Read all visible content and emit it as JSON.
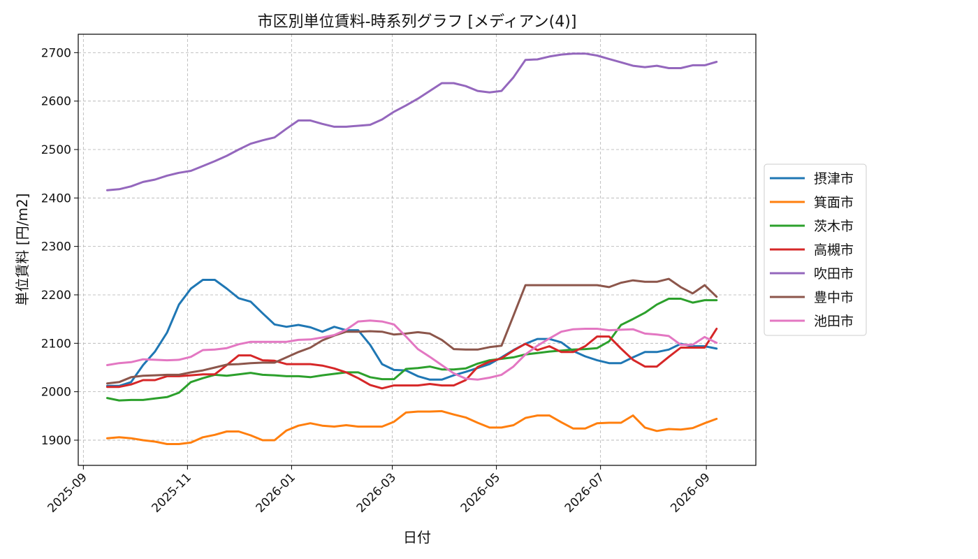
{
  "chart_data": {
    "type": "line",
    "title": "市区別単位賃料-時系列グラフ [メディアン(4)]",
    "xlabel": "日付",
    "ylabel": "単位賃料 [円/m2]",
    "xlim": [
      "2025-08-29",
      "2026-09-30"
    ],
    "ylim": [
      1848,
      2738
    ],
    "yticks": [
      1900,
      2000,
      2100,
      2200,
      2300,
      2400,
      2500,
      2600,
      2700
    ],
    "xticks": [
      "2025-09-01",
      "2025-11-01",
      "2026-01-01",
      "2026-03-01",
      "2026-05-01",
      "2026-07-01",
      "2026-09-01"
    ],
    "xtick_labels": [
      "2025-09",
      "2025-11",
      "2026-01",
      "2026-03",
      "2026-05",
      "2026-07",
      "2026-09"
    ],
    "grid": true,
    "legend_position": "center-right",
    "x": [
      "2025-09-15",
      "2025-09-22",
      "2025-09-29",
      "2025-10-06",
      "2025-10-13",
      "2025-10-20",
      "2025-10-27",
      "2025-11-03",
      "2025-11-10",
      "2025-11-17",
      "2025-11-24",
      "2025-12-01",
      "2025-12-08",
      "2025-12-15",
      "2025-12-22",
      "2025-12-29",
      "2026-01-05",
      "2026-01-12",
      "2026-01-19",
      "2026-01-26",
      "2026-02-02",
      "2026-02-09",
      "2026-02-16",
      "2026-02-23",
      "2026-03-02",
      "2026-03-09",
      "2026-03-16",
      "2026-03-23",
      "2026-03-30",
      "2026-04-06",
      "2026-04-13",
      "2026-04-20",
      "2026-04-27",
      "2026-05-04",
      "2026-05-11",
      "2026-05-18",
      "2026-05-25",
      "2026-06-01",
      "2026-06-08",
      "2026-06-15",
      "2026-06-22",
      "2026-06-29",
      "2026-07-06",
      "2026-07-13",
      "2026-07-20",
      "2026-07-27",
      "2026-08-03",
      "2026-08-10",
      "2026-08-17",
      "2026-08-24",
      "2026-08-31",
      "2026-09-07"
    ],
    "series": [
      {
        "name": "摂津市",
        "color": "#1f77b4",
        "values": [
          2012,
          2012,
          2020,
          2055,
          2083,
          2122,
          2180,
          2213,
          2231,
          2231,
          2213,
          2193,
          2186,
          2162,
          2139,
          2134,
          2138,
          2133,
          2124,
          2134,
          2127,
          2127,
          2097,
          2057,
          2045,
          2044,
          2032,
          2025,
          2025,
          2034,
          2041,
          2049,
          2057,
          2071,
          2086,
          2099,
          2109,
          2109,
          2102,
          2084,
          2073,
          2065,
          2059,
          2059,
          2071,
          2082,
          2082,
          2087,
          2099,
          2094,
          2094,
          2089
        ]
      },
      {
        "name": "箕面市",
        "color": "#ff7f0e",
        "values": [
          1904,
          1906,
          1904,
          1900,
          1897,
          1892,
          1892,
          1895,
          1906,
          1911,
          1918,
          1918,
          1910,
          1900,
          1900,
          1920,
          1930,
          1935,
          1930,
          1928,
          1931,
          1928,
          1928,
          1928,
          1938,
          1957,
          1959,
          1959,
          1960,
          1953,
          1947,
          1936,
          1926,
          1926,
          1931,
          1946,
          1951,
          1951,
          1937,
          1924,
          1924,
          1935,
          1936,
          1936,
          1951,
          1926,
          1919,
          1923,
          1922,
          1925,
          1935,
          1944
        ]
      },
      {
        "name": "茨木市",
        "color": "#2ca02c",
        "values": [
          1987,
          1982,
          1983,
          1983,
          1986,
          1989,
          1998,
          2020,
          2028,
          2035,
          2033,
          2036,
          2039,
          2035,
          2034,
          2032,
          2032,
          2030,
          2034,
          2037,
          2040,
          2040,
          2030,
          2026,
          2026,
          2047,
          2049,
          2052,
          2046,
          2046,
          2048,
          2058,
          2065,
          2068,
          2071,
          2077,
          2080,
          2083,
          2085,
          2087,
          2088,
          2090,
          2104,
          2138,
          2150,
          2163,
          2180,
          2192,
          2192,
          2184,
          2189,
          2189
        ]
      },
      {
        "name": "高槻市",
        "color": "#d62728",
        "values": [
          2010,
          2010,
          2015,
          2024,
          2024,
          2032,
          2032,
          2034,
          2036,
          2036,
          2055,
          2075,
          2075,
          2065,
          2064,
          2057,
          2057,
          2057,
          2054,
          2048,
          2040,
          2028,
          2014,
          2007,
          2013,
          2013,
          2013,
          2016,
          2013,
          2013,
          2024,
          2051,
          2062,
          2069,
          2085,
          2099,
          2086,
          2094,
          2082,
          2082,
          2094,
          2114,
          2114,
          2089,
          2066,
          2052,
          2052,
          2072,
          2091,
          2091,
          2091,
          2130
        ]
      },
      {
        "name": "吹田市",
        "color": "#9467bd",
        "values": [
          2416,
          2418,
          2424,
          2433,
          2438,
          2446,
          2452,
          2456,
          2466,
          2476,
          2487,
          2500,
          2512,
          2519,
          2525,
          2543,
          2560,
          2560,
          2553,
          2547,
          2547,
          2549,
          2551,
          2562,
          2578,
          2591,
          2605,
          2621,
          2637,
          2637,
          2631,
          2621,
          2618,
          2621,
          2649,
          2685,
          2686,
          2692,
          2696,
          2698,
          2698,
          2694,
          2687,
          2680,
          2673,
          2670,
          2673,
          2668,
          2668,
          2674,
          2674,
          2681
        ]
      },
      {
        "name": "豊中市",
        "color": "#8c564b",
        "values": [
          2017,
          2020,
          2030,
          2033,
          2034,
          2035,
          2035,
          2040,
          2044,
          2050,
          2056,
          2057,
          2059,
          2060,
          2060,
          2071,
          2082,
          2091,
          2106,
          2116,
          2124,
          2124,
          2125,
          2124,
          2118,
          2120,
          2123,
          2120,
          2107,
          2088,
          2087,
          2087,
          2092,
          2095,
          2157,
          2220,
          2220,
          2220,
          2220,
          2220,
          2220,
          2220,
          2216,
          2225,
          2230,
          2227,
          2227,
          2233,
          2216,
          2203,
          2220,
          2196
        ]
      },
      {
        "name": "池田市",
        "color": "#e377c2",
        "values": [
          2055,
          2059,
          2061,
          2067,
          2066,
          2065,
          2066,
          2072,
          2086,
          2087,
          2090,
          2098,
          2103,
          2103,
          2103,
          2103,
          2107,
          2108,
          2112,
          2117,
          2128,
          2145,
          2147,
          2145,
          2139,
          2114,
          2088,
          2072,
          2055,
          2038,
          2027,
          2025,
          2029,
          2035,
          2052,
          2077,
          2095,
          2110,
          2124,
          2129,
          2130,
          2130,
          2127,
          2128,
          2129,
          2120,
          2118,
          2115,
          2097,
          2097,
          2113,
          2101
        ]
      }
    ]
  }
}
